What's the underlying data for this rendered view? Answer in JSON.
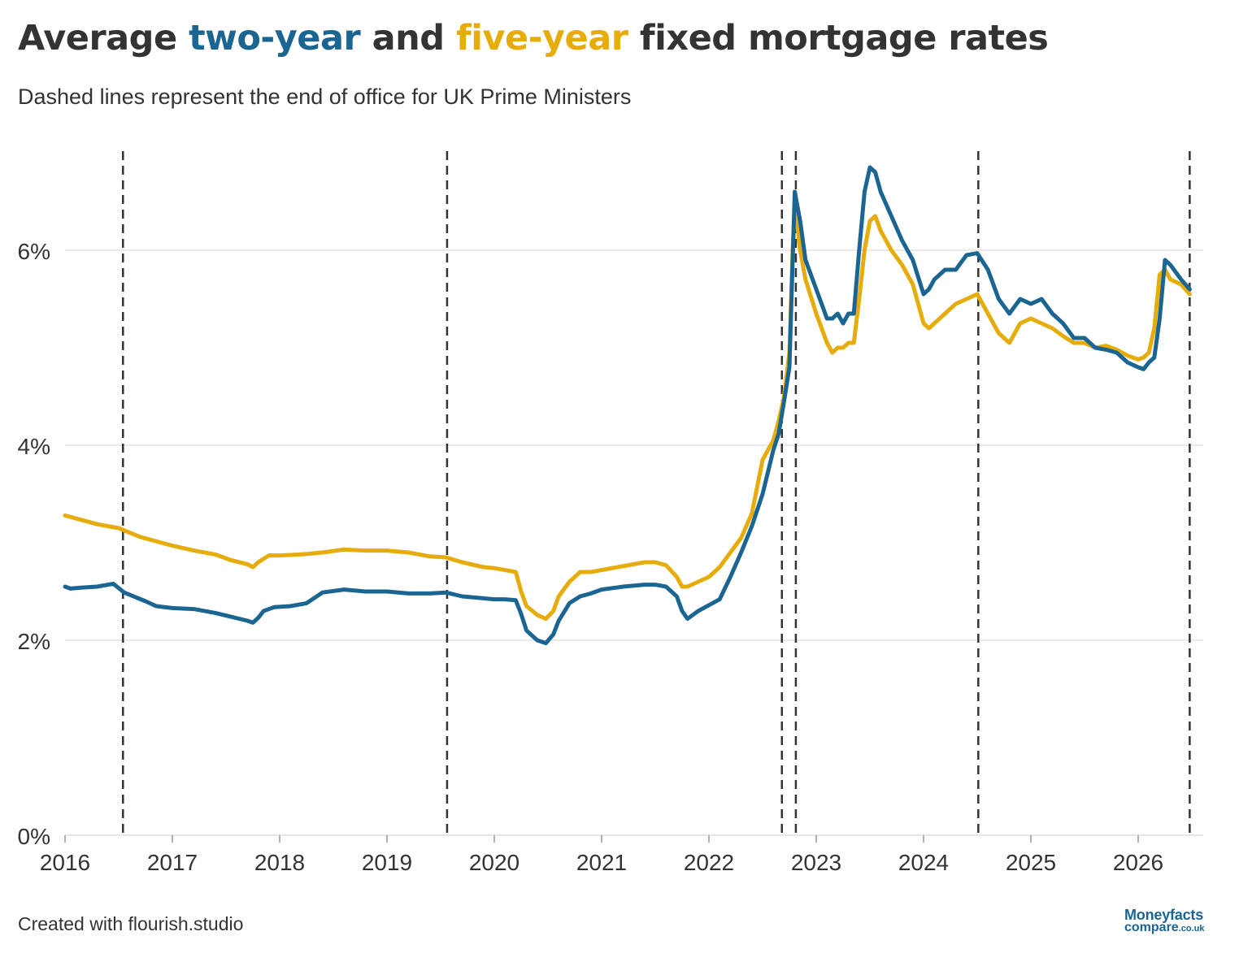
{
  "title": {
    "prefix": "Average ",
    "two_year": "two-year",
    "middle": " and ",
    "five_year": "five-year",
    "suffix": " fixed mortgage rates"
  },
  "subtitle": "Dashed lines represent the end of office for UK Prime Ministers",
  "footer": "Created with flourish.studio",
  "logo": {
    "line1": "Moneyfacts",
    "line2": "compare",
    "tld": ".co.uk"
  },
  "colors": {
    "two_year": "#1a6591",
    "five_year": "#e6ac0c",
    "grid": "#e4e4e4",
    "axis": "#999999",
    "text": "#333333",
    "dash": "#333333"
  },
  "chart_data": {
    "type": "line",
    "title": "Average two-year and five-year fixed mortgage rates",
    "subtitle": "Dashed lines represent the end of office for UK Prime Ministers",
    "xlabel": "",
    "ylabel": "",
    "x_range": [
      2016.0,
      2026.5
    ],
    "ylim": [
      0,
      6.9
    ],
    "y_ticks": [
      0,
      2,
      4,
      6
    ],
    "y_tick_labels": [
      "0%",
      "2%",
      "4%",
      "6%"
    ],
    "x_ticks": [
      2016,
      2017,
      2018,
      2019,
      2020,
      2021,
      2022,
      2023,
      2024,
      2025,
      2026
    ],
    "x_tick_labels": [
      "2016",
      "2017",
      "2018",
      "2019",
      "2020",
      "2021",
      "2022",
      "2023",
      "2024",
      "2025",
      "2026"
    ],
    "grid": true,
    "legend": "none",
    "pm_end_of_office": [
      2016.54,
      2019.56,
      2022.68,
      2022.81,
      2024.51,
      2026.48
    ],
    "series": [
      {
        "name": "two-year",
        "color": "#1a6591",
        "x": [
          2016.0,
          2016.05,
          2016.15,
          2016.3,
          2016.45,
          2016.55,
          2016.75,
          2016.85,
          2017.0,
          2017.2,
          2017.4,
          2017.55,
          2017.7,
          2017.75,
          2017.8,
          2017.85,
          2017.95,
          2018.1,
          2018.25,
          2018.4,
          2018.6,
          2018.8,
          2019.0,
          2019.2,
          2019.4,
          2019.55,
          2019.7,
          2019.9,
          2020.0,
          2020.1,
          2020.2,
          2020.25,
          2020.3,
          2020.4,
          2020.48,
          2020.55,
          2020.6,
          2020.7,
          2020.8,
          2020.9,
          2021.0,
          2021.2,
          2021.4,
          2021.5,
          2021.6,
          2021.7,
          2021.75,
          2021.8,
          2021.9,
          2022.0,
          2022.1,
          2022.2,
          2022.3,
          2022.4,
          2022.5,
          2022.6,
          2022.65,
          2022.7,
          2022.75,
          2022.78,
          2022.8,
          2022.85,
          2022.9,
          2023.0,
          2023.1,
          2023.15,
          2023.2,
          2023.25,
          2023.3,
          2023.35,
          2023.4,
          2023.45,
          2023.5,
          2023.55,
          2023.6,
          2023.7,
          2023.8,
          2023.9,
          2024.0,
          2024.05,
          2024.1,
          2024.2,
          2024.3,
          2024.4,
          2024.5,
          2024.6,
          2024.7,
          2024.8,
          2024.9,
          2025.0,
          2025.1,
          2025.2,
          2025.3,
          2025.4,
          2025.5,
          2025.6,
          2025.7,
          2025.8,
          2025.9,
          2026.0,
          2026.05,
          2026.1,
          2026.15,
          2026.2,
          2026.25,
          2026.3,
          2026.4,
          2026.48
        ],
        "y": [
          2.55,
          2.53,
          2.54,
          2.55,
          2.58,
          2.49,
          2.4,
          2.35,
          2.33,
          2.32,
          2.28,
          2.24,
          2.2,
          2.18,
          2.23,
          2.3,
          2.34,
          2.35,
          2.38,
          2.49,
          2.52,
          2.5,
          2.5,
          2.48,
          2.48,
          2.49,
          2.45,
          2.43,
          2.42,
          2.42,
          2.41,
          2.27,
          2.1,
          2.0,
          1.97,
          2.06,
          2.2,
          2.38,
          2.45,
          2.48,
          2.52,
          2.55,
          2.57,
          2.57,
          2.55,
          2.45,
          2.3,
          2.22,
          2.3,
          2.36,
          2.42,
          2.65,
          2.9,
          3.17,
          3.5,
          3.95,
          4.12,
          4.45,
          4.8,
          5.9,
          6.6,
          6.3,
          5.9,
          5.6,
          5.3,
          5.3,
          5.35,
          5.25,
          5.35,
          5.35,
          6.0,
          6.6,
          6.85,
          6.8,
          6.6,
          6.35,
          6.1,
          5.9,
          5.55,
          5.6,
          5.7,
          5.8,
          5.8,
          5.95,
          5.97,
          5.8,
          5.5,
          5.35,
          5.5,
          5.45,
          5.5,
          5.35,
          5.25,
          5.1,
          5.1,
          5.0,
          4.98,
          4.95,
          4.85,
          4.8,
          4.78,
          4.85,
          4.9,
          5.3,
          5.9,
          5.85,
          5.7,
          5.6
        ]
      },
      {
        "name": "five-year",
        "color": "#e6ac0c",
        "x": [
          2016.0,
          2016.1,
          2016.3,
          2016.5,
          2016.7,
          2016.9,
          2017.0,
          2017.2,
          2017.4,
          2017.55,
          2017.7,
          2017.75,
          2017.8,
          2017.9,
          2018.0,
          2018.2,
          2018.4,
          2018.6,
          2018.8,
          2019.0,
          2019.2,
          2019.4,
          2019.55,
          2019.7,
          2019.9,
          2020.0,
          2020.1,
          2020.2,
          2020.25,
          2020.3,
          2020.4,
          2020.48,
          2020.55,
          2020.6,
          2020.7,
          2020.8,
          2020.9,
          2021.0,
          2021.2,
          2021.4,
          2021.5,
          2021.6,
          2021.7,
          2021.75,
          2021.8,
          2021.9,
          2022.0,
          2022.1,
          2022.2,
          2022.3,
          2022.4,
          2022.5,
          2022.6,
          2022.65,
          2022.7,
          2022.75,
          2022.78,
          2022.8,
          2022.85,
          2022.9,
          2023.0,
          2023.1,
          2023.15,
          2023.2,
          2023.25,
          2023.3,
          2023.35,
          2023.4,
          2023.45,
          2023.5,
          2023.55,
          2023.6,
          2023.7,
          2023.8,
          2023.9,
          2024.0,
          2024.05,
          2024.1,
          2024.2,
          2024.3,
          2024.4,
          2024.5,
          2024.6,
          2024.7,
          2024.8,
          2024.9,
          2025.0,
          2025.1,
          2025.2,
          2025.3,
          2025.4,
          2025.5,
          2025.6,
          2025.7,
          2025.8,
          2025.9,
          2026.0,
          2026.05,
          2026.1,
          2026.15,
          2026.2,
          2026.25,
          2026.3,
          2026.4,
          2026.48
        ],
        "y": [
          3.28,
          3.25,
          3.19,
          3.15,
          3.06,
          3.0,
          2.97,
          2.92,
          2.88,
          2.82,
          2.78,
          2.75,
          2.8,
          2.87,
          2.87,
          2.88,
          2.9,
          2.93,
          2.92,
          2.92,
          2.9,
          2.86,
          2.85,
          2.8,
          2.75,
          2.74,
          2.72,
          2.7,
          2.5,
          2.35,
          2.26,
          2.22,
          2.3,
          2.45,
          2.6,
          2.7,
          2.7,
          2.72,
          2.76,
          2.8,
          2.8,
          2.77,
          2.65,
          2.55,
          2.55,
          2.6,
          2.65,
          2.75,
          2.9,
          3.05,
          3.3,
          3.85,
          4.05,
          4.25,
          4.5,
          4.95,
          6.0,
          6.5,
          6.0,
          5.7,
          5.35,
          5.05,
          4.95,
          5.0,
          5.0,
          5.05,
          5.05,
          5.5,
          6.0,
          6.3,
          6.35,
          6.2,
          6.0,
          5.85,
          5.65,
          5.25,
          5.2,
          5.25,
          5.35,
          5.45,
          5.5,
          5.55,
          5.35,
          5.15,
          5.05,
          5.25,
          5.3,
          5.25,
          5.2,
          5.12,
          5.05,
          5.05,
          5.0,
          5.02,
          4.98,
          4.92,
          4.88,
          4.9,
          4.95,
          5.2,
          5.75,
          5.8,
          5.7,
          5.65,
          5.55
        ]
      }
    ]
  }
}
